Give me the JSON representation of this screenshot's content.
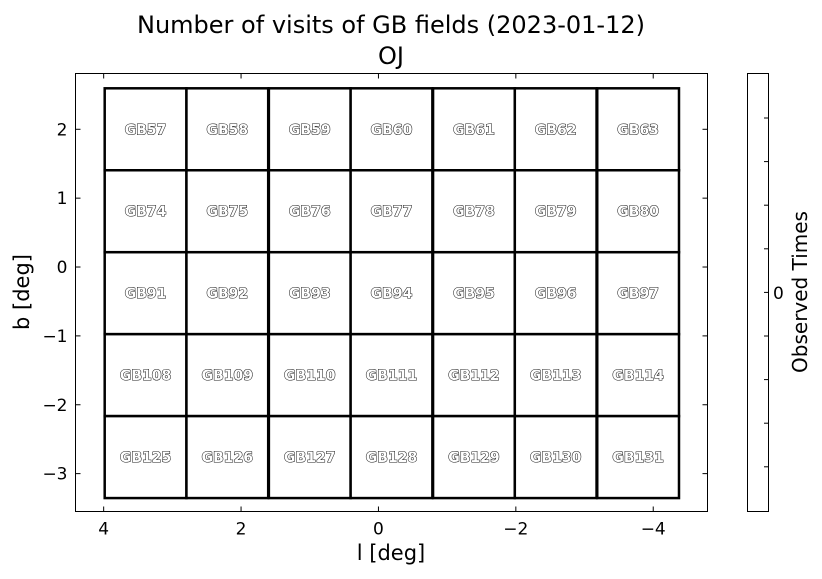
{
  "chart_data": {
    "type": "heatmap",
    "title": "Number of visits of GB fields (2023-01-12)",
    "subtitle": "OJ",
    "xlabel": "l [deg]",
    "ylabel": "b [deg]",
    "xlim": [
      4.41,
      -4.79
    ],
    "ylim": [
      -3.55,
      2.81
    ],
    "x_ticks": [
      4,
      2,
      0,
      -2,
      -4
    ],
    "x_tick_labels": [
      "4",
      "2",
      "0",
      "−2",
      "−4"
    ],
    "y_ticks": [
      2,
      1,
      0,
      -1,
      -2,
      -3
    ],
    "y_tick_labels": [
      "2",
      "1",
      "0",
      "−1",
      "−2",
      "−3"
    ],
    "grid": false,
    "cell_size_deg": 1.19,
    "columns_l": [
      3.39,
      2.2,
      1.0,
      -0.19,
      -1.39,
      -2.58,
      -3.78
    ],
    "rows_b": [
      2.0,
      0.81,
      -0.38,
      -1.57,
      -2.76
    ],
    "fields": [
      [
        "GB57",
        "GB58",
        "GB59",
        "GB60",
        "GB61",
        "GB62",
        "GB63"
      ],
      [
        "GB74",
        "GB75",
        "GB76",
        "GB77",
        "GB78",
        "GB79",
        "GB80"
      ],
      [
        "GB91",
        "GB92",
        "GB93",
        "GB94",
        "GB95",
        "GB96",
        "GB97"
      ],
      [
        "GB108",
        "GB109",
        "GB110",
        "GB111",
        "GB112",
        "GB113",
        "GB114"
      ],
      [
        "GB125",
        "GB126",
        "GB127",
        "GB128",
        "GB129",
        "GB130",
        "GB131"
      ]
    ],
    "values": [
      [
        0,
        0,
        0,
        0,
        0,
        0,
        0
      ],
      [
        0,
        0,
        0,
        0,
        0,
        0,
        0
      ],
      [
        0,
        0,
        0,
        0,
        0,
        0,
        0
      ],
      [
        0,
        0,
        0,
        0,
        0,
        0,
        0
      ],
      [
        0,
        0,
        0,
        0,
        0,
        0,
        0
      ]
    ],
    "colorbar": {
      "label": "Observed Times",
      "tick_labels": [
        "0"
      ],
      "cell_color": "#ffffff"
    }
  }
}
